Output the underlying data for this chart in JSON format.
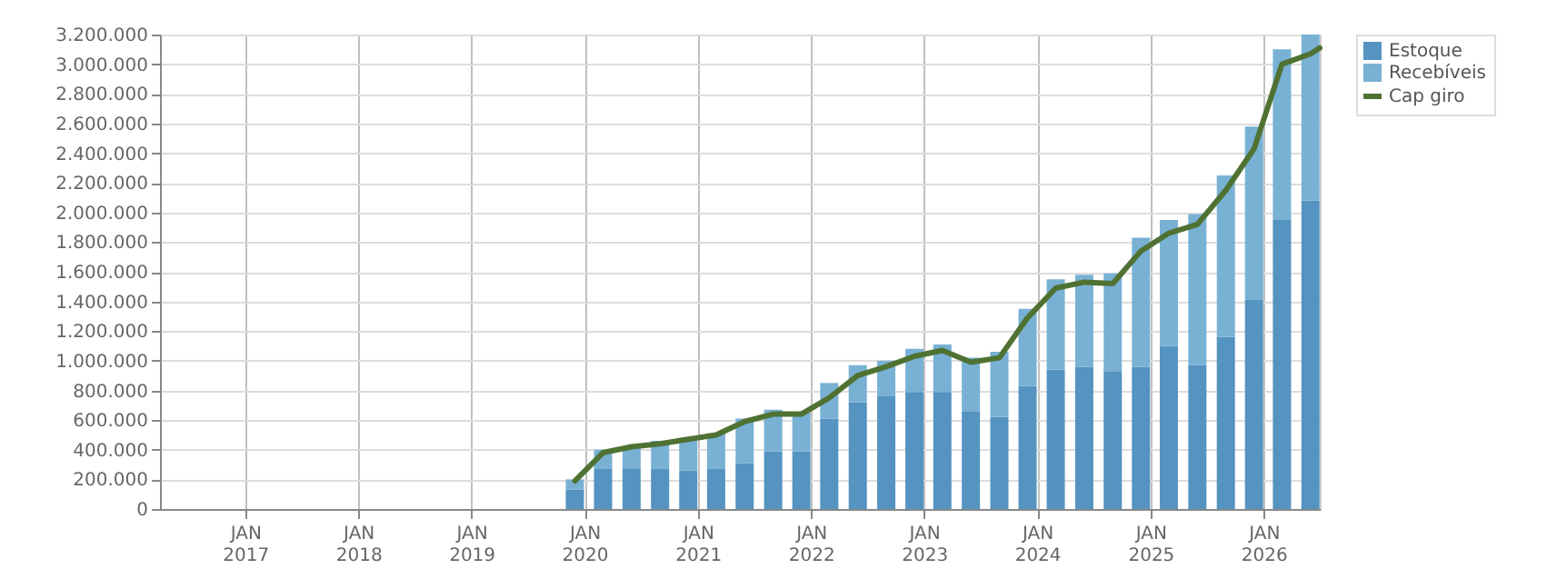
{
  "chart_data": {
    "type": "bar",
    "stacked": true,
    "x": [
      "2019-12",
      "2020-03",
      "2020-06",
      "2020-09",
      "2020-12",
      "2021-03",
      "2021-06",
      "2021-09",
      "2021-12",
      "2022-03",
      "2022-06",
      "2022-09",
      "2022-12",
      "2023-03",
      "2023-06",
      "2023-09",
      "2023-12",
      "2024-03",
      "2024-06",
      "2024-09",
      "2024-12",
      "2025-03",
      "2025-06",
      "2025-09",
      "2025-12",
      "2026-03",
      "2026-06"
    ],
    "series": [
      {
        "name": "Estoque",
        "color": "#5593c0",
        "values": [
          130000,
          270000,
          270000,
          270000,
          260000,
          270000,
          310000,
          390000,
          390000,
          610000,
          720000,
          760000,
          790000,
          790000,
          660000,
          620000,
          830000,
          940000,
          960000,
          930000,
          960000,
          1100000,
          970000,
          1160000,
          1410000,
          1950000,
          2080000
        ]
      },
      {
        "name": "Recebíveis",
        "color": "#79b1d5",
        "values": [
          70000,
          130000,
          150000,
          190000,
          220000,
          240000,
          300000,
          280000,
          260000,
          240000,
          250000,
          240000,
          290000,
          320000,
          360000,
          440000,
          520000,
          610000,
          620000,
          660000,
          870000,
          850000,
          1020000,
          1090000,
          1170000,
          1150000,
          1120000
        ]
      },
      {
        "name": "Cap giro",
        "type": "line",
        "color": "#4f7233",
        "x": [
          "2019-12",
          "2020-03",
          "2020-06",
          "2020-09",
          "2020-12",
          "2021-03",
          "2021-06",
          "2021-09",
          "2021-12",
          "2022-03",
          "2022-06",
          "2022-09",
          "2022-12",
          "2023-03",
          "2023-06",
          "2023-09",
          "2023-12",
          "2024-03",
          "2024-06",
          "2024-09",
          "2024-12",
          "2025-03",
          "2025-06",
          "2025-09",
          "2025-12",
          "2026-03",
          "2026-06",
          "2026-07"
        ],
        "values": [
          190000,
          380000,
          420000,
          440000,
          470000,
          500000,
          590000,
          640000,
          640000,
          750000,
          900000,
          960000,
          1030000,
          1070000,
          990000,
          1020000,
          1290000,
          1490000,
          1530000,
          1520000,
          1740000,
          1860000,
          1920000,
          2150000,
          2430000,
          3000000,
          3070000,
          3110000
        ]
      }
    ],
    "xlim": [
      "2016-04",
      "2026-07"
    ],
    "xticks": [
      {
        "value": "2017-01",
        "label": "JAN 2017"
      },
      {
        "value": "2018-01",
        "label": "JAN 2018"
      },
      {
        "value": "2019-01",
        "label": "JAN 2019"
      },
      {
        "value": "2020-01",
        "label": "JAN 2020"
      },
      {
        "value": "2021-01",
        "label": "JAN 2021"
      },
      {
        "value": "2022-01",
        "label": "JAN 2022"
      },
      {
        "value": "2023-01",
        "label": "JAN 2023"
      },
      {
        "value": "2024-01",
        "label": "JAN 2024"
      },
      {
        "value": "2025-01",
        "label": "JAN 2025"
      },
      {
        "value": "2026-01",
        "label": "JAN 2026"
      }
    ],
    "ylim": [
      0,
      3200000
    ],
    "yticks": [
      0,
      {
        "value": 200000,
        "label": "200.000"
      },
      {
        "value": 400000,
        "label": "400.000"
      },
      {
        "value": 600000,
        "label": "600.000"
      },
      {
        "value": 800000,
        "label": "800.000"
      },
      {
        "value": 1000000,
        "label": "1.000.000"
      },
      {
        "value": 1200000,
        "label": "1.200.000"
      },
      {
        "value": 1400000,
        "label": "1.400.000"
      },
      {
        "value": 1600000,
        "label": "1.600.000"
      },
      {
        "value": 1800000,
        "label": "1.800.000"
      },
      {
        "value": 2000000,
        "label": "2.000.000"
      },
      {
        "value": 2200000,
        "label": "2.200.000"
      },
      {
        "value": 2400000,
        "label": "2.400.000"
      },
      {
        "value": 2600000,
        "label": "2.600.000"
      },
      {
        "value": 2800000,
        "label": "2.800.000"
      },
      {
        "value": 3000000,
        "label": "3.000.000"
      },
      {
        "value": 3200000,
        "label": "3.200.000"
      }
    ],
    "grid": true,
    "legend": "top right"
  }
}
